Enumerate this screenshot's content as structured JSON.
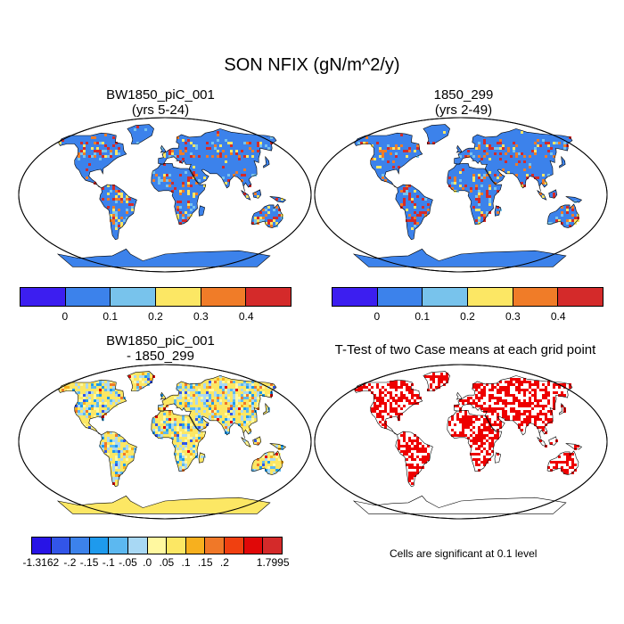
{
  "title": "SON NFIX (gN/m^2/y)",
  "panels": [
    {
      "id": "case1",
      "title_line1": "BW1850_piC_001",
      "title_line2": "(yrs 5-24)"
    },
    {
      "id": "case2",
      "title_line1": "1850_299",
      "title_line2": "(yrs 2-49)"
    },
    {
      "id": "diff",
      "title_line1": "BW1850_piC_001",
      "title_line2": "- 1850_299"
    },
    {
      "id": "ttest",
      "title_line1": "T-Test of two Case means at each grid point",
      "title_line2": ""
    }
  ],
  "colorbar_main": {
    "colors": [
      "#3c1ef0",
      "#3c82eb",
      "#78c3ec",
      "#fce764",
      "#f07c28",
      "#d42a2a"
    ],
    "labels": [
      "0",
      "0.1",
      "0.2",
      "0.3",
      "0.4"
    ]
  },
  "colorbar_diff": {
    "colors": [
      "#2814e6",
      "#3255e8",
      "#3c82eb",
      "#1e9aed",
      "#5cb8f0",
      "#a8d8f4",
      "#fff8a0",
      "#fce764",
      "#f7b01e",
      "#f07828",
      "#f04010",
      "#e00808",
      "#d42a2a"
    ],
    "labels": [
      "-1.3162",
      "-.2",
      "-.15",
      "-.1",
      "-.05",
      ".0",
      ".05",
      ".1",
      ".15",
      ".2",
      "1.7995"
    ]
  },
  "significance_note": "Cells are significant at 0.1 level",
  "colors": {
    "ocean": "#ffffff",
    "coast": "#000000",
    "sig_cells": "#ee0000"
  }
}
